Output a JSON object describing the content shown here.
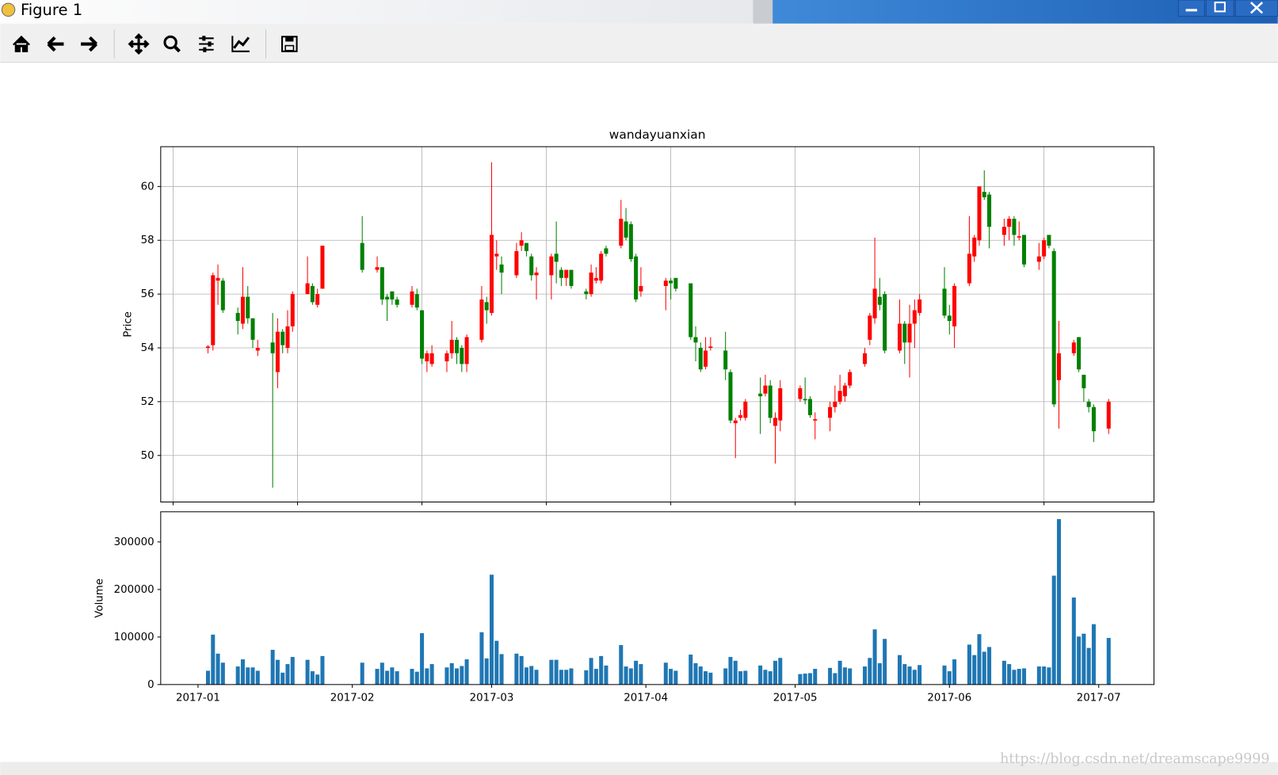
{
  "window": {
    "title": "Figure 1"
  },
  "watermark": "https://blog.csdn.net/dreamscape9999",
  "chart_data": [
    {
      "type": "candlestick",
      "title": "wandayuanxian",
      "ylabel": "Price",
      "x": [
        736332,
        736333,
        736334,
        736335,
        736338,
        736339,
        736340,
        736341,
        736342,
        736345,
        736346,
        736347,
        736348,
        736349,
        736352,
        736353,
        736354,
        736355,
        736363,
        736366,
        736367,
        736368,
        736369,
        736370,
        736373,
        736374,
        736375,
        736376,
        736377,
        736380,
        736381,
        736382,
        736383,
        736384,
        736387,
        736388,
        736389,
        736390,
        736391,
        736394,
        736395,
        736396,
        736397,
        736398,
        736401,
        736402,
        736403,
        736404,
        736405,
        736408,
        736409,
        736410,
        736411,
        736412,
        736415,
        736416,
        736417,
        736418,
        736419,
        736424,
        736425,
        736426,
        736429,
        736430,
        736431,
        736432,
        736433,
        736436,
        736437,
        736438,
        736439,
        736440,
        736443,
        736444,
        736445,
        736446,
        736447,
        736451,
        736452,
        736453,
        736454,
        736457,
        736458,
        736459,
        736460,
        736461,
        736464,
        736465,
        736466,
        736467,
        736468,
        736471,
        736472,
        736473,
        736474,
        736475,
        736480,
        736481,
        736482,
        736485,
        736486,
        736487,
        736488,
        736489,
        736492,
        736493,
        736494,
        736495,
        736496,
        736499,
        736500,
        736501,
        736502,
        736503,
        736506,
        736507,
        736508,
        736509,
        736510,
        736513
      ],
      "open": [
        54.0,
        54.1,
        56.5,
        56.5,
        55.3,
        54.9,
        55.9,
        55.1,
        53.9,
        54.2,
        53.1,
        54.6,
        54.0,
        54.8,
        56.0,
        56.3,
        55.6,
        56.2,
        57.9,
        56.9,
        57.0,
        55.9,
        56.1,
        55.8,
        55.6,
        56.0,
        55.4,
        53.5,
        53.4,
        53.5,
        53.8,
        54.3,
        54.0,
        53.4,
        54.3,
        55.7,
        55.3,
        57.4,
        57.1,
        56.7,
        57.8,
        57.9,
        57.4,
        56.7,
        56.7,
        57.5,
        56.9,
        56.6,
        56.9,
        56.1,
        56.0,
        56.5,
        56.5,
        57.7,
        57.8,
        58.7,
        58.6,
        57.4,
        56.1,
        56.3,
        56.5,
        56.6,
        56.4,
        54.4,
        54.0,
        53.3,
        54.0,
        53.9,
        53.1,
        51.2,
        51.4,
        51.4,
        52.3,
        52.3,
        52.6,
        51.1,
        51.3,
        52.1,
        52.1,
        52.1,
        51.3,
        51.4,
        51.8,
        52.0,
        52.2,
        52.6,
        53.4,
        54.3,
        55.1,
        55.9,
        56.0,
        53.9,
        54.9,
        54.2,
        54.9,
        55.3,
        56.2,
        55.2,
        54.8,
        56.4,
        57.4,
        58.0,
        59.8,
        59.7,
        58.2,
        58.5,
        58.8,
        58.1,
        58.2,
        57.2,
        57.4,
        58.2,
        57.6,
        52.8,
        53.8,
        54.4,
        53.0,
        52.0,
        51.8,
        51.0
      ],
      "high": [
        54.1,
        56.8,
        57.1,
        56.6,
        55.5,
        57.0,
        56.3,
        55.1,
        54.3,
        55.3,
        55.1,
        54.7,
        55.4,
        56.1,
        57.4,
        56.4,
        56.2,
        57.8,
        58.9,
        57.4,
        57.0,
        56.0,
        56.1,
        55.9,
        56.3,
        56.2,
        55.4,
        53.9,
        54.1,
        53.9,
        55.0,
        54.4,
        54.1,
        54.5,
        56.3,
        55.9,
        60.9,
        58.0,
        57.4,
        57.9,
        58.3,
        57.9,
        57.5,
        57.0,
        57.5,
        58.7,
        57.0,
        56.9,
        56.9,
        56.2,
        57.1,
        57.0,
        57.6,
        57.8,
        59.5,
        59.2,
        58.7,
        57.5,
        57.0,
        56.6,
        56.6,
        56.6,
        56.4,
        54.8,
        54.2,
        54.4,
        54.4,
        54.6,
        53.2,
        51.4,
        51.7,
        52.1,
        52.9,
        53.0,
        52.8,
        51.6,
        52.8,
        52.6,
        52.9,
        52.2,
        51.6,
        52.0,
        52.6,
        53.0,
        52.7,
        53.2,
        54.0,
        55.3,
        58.1,
        56.6,
        56.1,
        55.8,
        55.0,
        55.6,
        55.8,
        56.0,
        57.0,
        55.6,
        56.4,
        58.9,
        58.2,
        60.0,
        60.6,
        59.8,
        58.8,
        58.9,
        58.9,
        58.7,
        58.2,
        57.9,
        58.1,
        58.2,
        57.7,
        55.0,
        54.3,
        54.4,
        53.0,
        52.1,
        51.9,
        52.1
      ],
      "low": [
        53.8,
        53.9,
        55.6,
        55.3,
        54.5,
        54.7,
        54.9,
        54.0,
        53.7,
        48.8,
        52.5,
        53.8,
        53.8,
        54.6,
        56.0,
        55.6,
        55.5,
        56.2,
        56.8,
        56.8,
        55.6,
        55.0,
        55.6,
        55.5,
        55.5,
        55.4,
        53.4,
        53.1,
        53.3,
        53.1,
        53.6,
        53.4,
        53.1,
        53.1,
        54.2,
        54.9,
        55.2,
        56.9,
        56.0,
        56.6,
        57.6,
        57.4,
        56.5,
        55.8,
        55.8,
        56.4,
        56.3,
        56.3,
        56.2,
        55.8,
        55.9,
        56.4,
        56.4,
        57.4,
        57.7,
        58.0,
        57.2,
        55.7,
        55.9,
        55.4,
        55.8,
        56.1,
        54.3,
        53.5,
        53.1,
        53.2,
        53.9,
        52.8,
        51.2,
        49.9,
        51.3,
        51.3,
        50.8,
        52.2,
        51.2,
        49.7,
        50.9,
        52.0,
        51.9,
        51.4,
        50.6,
        50.9,
        51.6,
        51.9,
        52.0,
        52.5,
        53.3,
        54.1,
        54.9,
        55.4,
        53.8,
        53.8,
        53.4,
        52.9,
        54.0,
        55.2,
        55.1,
        54.5,
        54.0,
        56.3,
        57.2,
        57.8,
        59.5,
        57.7,
        57.8,
        58.0,
        57.8,
        58.0,
        57.0,
        56.9,
        57.3,
        57.7,
        51.8,
        51.0,
        53.7,
        53.1,
        52.0,
        51.6,
        50.5,
        50.8
      ],
      "close": [
        54.05,
        56.7,
        56.6,
        55.4,
        55.0,
        55.9,
        55.1,
        54.3,
        54.0,
        53.8,
        54.6,
        54.1,
        54.8,
        56.0,
        56.4,
        55.7,
        56.0,
        57.8,
        56.9,
        57.0,
        55.8,
        55.8,
        55.8,
        55.6,
        56.1,
        55.5,
        53.6,
        53.8,
        53.8,
        53.8,
        54.3,
        53.8,
        53.4,
        54.4,
        55.8,
        55.4,
        58.2,
        57.5,
        56.8,
        57.6,
        58.0,
        57.6,
        56.7,
        56.8,
        57.4,
        57.2,
        56.6,
        56.9,
        56.3,
        56.0,
        56.8,
        56.6,
        57.5,
        57.5,
        58.8,
        58.1,
        57.3,
        55.8,
        56.3,
        56.5,
        56.4,
        56.2,
        54.4,
        54.2,
        53.2,
        53.9,
        54.05,
        53.2,
        51.3,
        51.3,
        51.5,
        52.0,
        52.2,
        52.6,
        51.4,
        51.4,
        52.5,
        52.5,
        52.05,
        51.5,
        51.35,
        51.8,
        52.0,
        52.4,
        52.6,
        53.1,
        53.8,
        55.2,
        56.2,
        55.6,
        53.9,
        54.9,
        54.2,
        54.9,
        55.4,
        55.8,
        55.2,
        55.0,
        56.3,
        57.5,
        58.1,
        60.0,
        59.6,
        58.5,
        58.5,
        58.8,
        58.2,
        58.15,
        57.1,
        57.4,
        58.0,
        57.8,
        51.9,
        53.8,
        54.2,
        53.2,
        52.5,
        51.8,
        50.9,
        52.0
      ],
      "up_color": "red",
      "down_color": "green",
      "xlim": [
        736322.5,
        736522.1
      ],
      "xticks": [
        736325,
        736350,
        736375,
        736400,
        736425,
        736450,
        736475,
        736500
      ],
      "ylim": [
        48.27,
        61.48
      ],
      "yticks": [
        50,
        52,
        54,
        56,
        58,
        60
      ],
      "grid": true
    },
    {
      "type": "bar",
      "ylabel": "Volume",
      "color": "#1f77b4",
      "x": [
        736332,
        736333,
        736334,
        736335,
        736338,
        736339,
        736340,
        736341,
        736342,
        736345,
        736346,
        736347,
        736348,
        736349,
        736352,
        736353,
        736354,
        736355,
        736363,
        736366,
        736367,
        736368,
        736369,
        736370,
        736373,
        736374,
        736375,
        736376,
        736377,
        736380,
        736381,
        736382,
        736383,
        736384,
        736387,
        736388,
        736389,
        736390,
        736391,
        736394,
        736395,
        736396,
        736397,
        736398,
        736401,
        736402,
        736403,
        736404,
        736405,
        736408,
        736409,
        736410,
        736411,
        736412,
        736415,
        736416,
        736417,
        736418,
        736419,
        736424,
        736425,
        736426,
        736429,
        736430,
        736431,
        736432,
        736433,
        736436,
        736437,
        736438,
        736439,
        736440,
        736443,
        736444,
        736445,
        736446,
        736447,
        736451,
        736452,
        736453,
        736454,
        736457,
        736458,
        736459,
        736460,
        736461,
        736464,
        736465,
        736466,
        736467,
        736468,
        736471,
        736472,
        736473,
        736474,
        736475,
        736480,
        736481,
        736482,
        736485,
        736486,
        736487,
        736488,
        736489,
        736492,
        736493,
        736494,
        736495,
        736496,
        736499,
        736500,
        736501,
        736502,
        736503,
        736506,
        736507,
        736508,
        736509,
        736510,
        736513
      ],
      "values": [
        29000,
        105000,
        65000,
        46000,
        38000,
        53000,
        36000,
        36000,
        29000,
        73000,
        52000,
        25000,
        43000,
        58000,
        52000,
        28000,
        21000,
        60000,
        46000,
        33000,
        46000,
        29000,
        36000,
        28000,
        33000,
        27000,
        108000,
        34000,
        43000,
        36000,
        45000,
        34000,
        39000,
        53000,
        110000,
        55000,
        231000,
        92000,
        64000,
        65000,
        60000,
        36000,
        39000,
        31000,
        52000,
        52000,
        31000,
        31000,
        34000,
        30000,
        56000,
        33000,
        60000,
        40000,
        83000,
        38000,
        34000,
        50000,
        43000,
        46000,
        33000,
        29000,
        63000,
        45000,
        38000,
        28000,
        25000,
        34000,
        58000,
        50000,
        28000,
        29000,
        40000,
        31000,
        28000,
        50000,
        56000,
        22000,
        23000,
        24000,
        33000,
        35000,
        24000,
        50000,
        36000,
        34000,
        38000,
        56000,
        116000,
        45000,
        96000,
        62000,
        43000,
        38000,
        31000,
        41000,
        40000,
        28000,
        53000,
        84000,
        62000,
        106000,
        69000,
        79000,
        50000,
        43000,
        31000,
        33000,
        34000,
        38000,
        38000,
        36000,
        229000,
        348000,
        183000,
        101000,
        107000,
        77000,
        127000,
        98000
      ],
      "xlim": [
        736322.5,
        736522.1
      ],
      "xticks": [
        {
          "value": 736330,
          "label": "2017-01"
        },
        {
          "value": 736361,
          "label": "2017-02"
        },
        {
          "value": 736389,
          "label": "2017-03"
        },
        {
          "value": 736420,
          "label": "2017-04"
        },
        {
          "value": 736450,
          "label": "2017-05"
        },
        {
          "value": 736481,
          "label": "2017-06"
        },
        {
          "value": 736511,
          "label": "2017-07"
        }
      ],
      "ylim": [
        0,
        363400
      ],
      "yticks": [
        0,
        100000,
        200000,
        300000
      ],
      "grid": false
    }
  ]
}
